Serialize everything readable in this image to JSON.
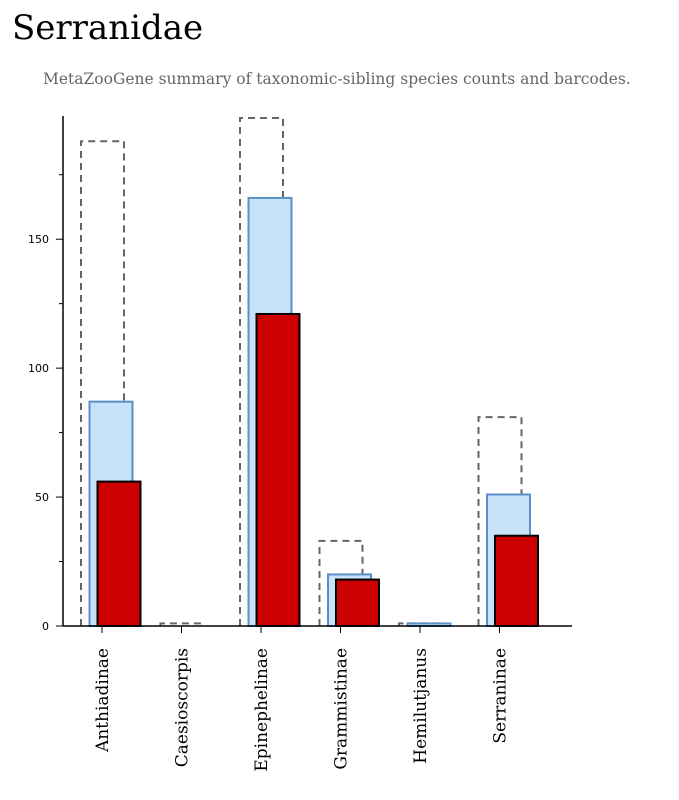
{
  "title": "Serranidae",
  "subtitle": "MetaZooGene summary of taxonomic-sibling species counts and barcodes.",
  "colors": {
    "outline": "#666666",
    "middle_fill": "#c9e2fb",
    "middle_stroke": "#5b8fc7",
    "front_fill": "#cc0000",
    "front_stroke": "#000000"
  },
  "chart_data": {
    "type": "bar",
    "categories": [
      "Anthiadinae",
      "Caesioscorpis",
      "Epinephelinae",
      "Grammistinae",
      "Hemilutjanus",
      "Serraninae"
    ],
    "series": [
      {
        "values": [
          188,
          1,
          197,
          33,
          1,
          81
        ]
      },
      {
        "values": [
          87,
          0,
          166,
          20,
          1,
          51
        ]
      },
      {
        "values": [
          56,
          0,
          121,
          18,
          0,
          35
        ]
      }
    ],
    "yticks": [
      0,
      50,
      100,
      150
    ],
    "ylim": [
      0,
      197
    ],
    "xlabel": "",
    "ylabel": "",
    "grid": false,
    "legend": "none"
  }
}
